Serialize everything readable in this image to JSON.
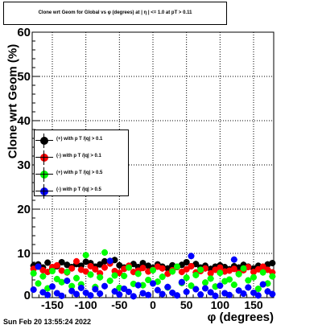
{
  "title": "Clone wrt Geom for Global vs φ (degrees) at | η | <= 1.0 at pT > 0.11",
  "footer": "Sun Feb 20 13:55:24 2022",
  "colors": {
    "black": "#000000",
    "red": "#ff0000",
    "green": "#00ff00",
    "blue": "#0000ff"
  },
  "chart_data": {
    "type": "scatter",
    "title": "Clone wrt Geom for Global vs φ (degrees) at | η | <= 1.0 at pT > 0.11",
    "xlabel": "φ (degrees)",
    "ylabel": "Clone wrt Geom (%)",
    "xlim": [
      -180,
      180
    ],
    "ylim": [
      0,
      60
    ],
    "xticks": [
      -150,
      -100,
      -50,
      0,
      50,
      100,
      150
    ],
    "yticks": [
      10,
      20,
      30,
      40,
      50,
      60
    ],
    "grid": true,
    "legend_position": "left-middle",
    "x": [
      -178,
      -171,
      -164,
      -157,
      -150,
      -143,
      -136,
      -128,
      -121,
      -114,
      -107,
      -100,
      -93,
      -86,
      -79,
      -72,
      -64,
      -57,
      -50,
      -43,
      -36,
      -29,
      -22,
      -15,
      -7,
      0,
      7,
      14,
      22,
      29,
      36,
      43,
      50,
      57,
      64,
      71,
      78,
      86,
      93,
      100,
      107,
      114,
      121,
      128,
      135,
      142,
      150,
      157,
      164,
      171,
      178
    ],
    "series": [
      {
        "name": "(+) with p T /|q| > 0.1",
        "color": "#000000",
        "values": [
          7.2,
          7.5,
          6.8,
          7.9,
          6.5,
          7.1,
          8.0,
          7.4,
          6.9,
          7.6,
          7.2,
          8.1,
          7.8,
          7.0,
          7.5,
          8.2,
          7.9,
          8.5,
          7.3,
          6.8,
          7.1,
          7.6,
          6.9,
          7.8,
          7.2,
          6.7,
          7.5,
          7.0,
          6.6,
          7.3,
          6.9,
          7.4,
          8.0,
          7.1,
          7.6,
          6.8,
          7.2,
          6.5,
          7.0,
          7.3,
          6.9,
          6.4,
          7.1,
          6.8,
          7.4,
          7.0,
          6.6,
          7.2,
          6.9,
          7.5,
          7.8
        ]
      },
      {
        "name": "(-) with p T /|q| > 0.1",
        "color": "#ff0000",
        "values": [
          6.5,
          7.0,
          6.2,
          5.8,
          6.9,
          7.3,
          6.1,
          5.7,
          6.6,
          8.2,
          6.3,
          5.9,
          7.1,
          6.4,
          5.5,
          6.8,
          7.7,
          6.0,
          5.6,
          6.5,
          7.2,
          5.8,
          6.1,
          6.7,
          5.9,
          6.3,
          7.0,
          6.6,
          5.4,
          6.2,
          6.9,
          5.8,
          6.4,
          7.1,
          5.7,
          6.0,
          6.6,
          5.5,
          6.3,
          6.8,
          5.9,
          6.1,
          6.5,
          5.6,
          6.2,
          6.9,
          5.8,
          6.4,
          7.0,
          6.3,
          5.7
        ]
      },
      {
        "name": "(+) with p T /|q| > 0.5",
        "color": "#00ff00",
        "values": [
          5.5,
          3.2,
          4.8,
          2.1,
          6.0,
          4.2,
          3.5,
          5.8,
          2.6,
          4.4,
          3.0,
          9.6,
          5.2,
          2.4,
          4.6,
          10.2,
          3.8,
          5.0,
          2.2,
          4.9,
          6.8,
          3.1,
          5.4,
          2.8,
          4.0,
          6.2,
          3.6,
          4.7,
          2.3,
          5.9,
          7.0,
          3.3,
          4.5,
          2.7,
          5.1,
          6.3,
          3.4,
          4.3,
          2.5,
          5.6,
          3.7,
          4.1,
          2.9,
          5.3,
          6.6,
          3.9,
          4.6,
          2.0,
          5.7,
          3.2,
          4.8
        ]
      },
      {
        "name": "(-) with p T /|q| > 0.5",
        "color": "#0000ff",
        "values": [
          1.8,
          7.0,
          1.2,
          0.6,
          2.5,
          1.0,
          0.4,
          3.8,
          1.5,
          0.8,
          2.2,
          1.1,
          0.5,
          1.9,
          0.9,
          2.6,
          8.3,
          1.4,
          0.7,
          2.0,
          1.3,
          0.3,
          2.8,
          1.0,
          0.6,
          3.2,
          1.7,
          0.8,
          2.4,
          1.1,
          0.5,
          3.5,
          1.3,
          9.4,
          1.9,
          0.7,
          2.1,
          1.2,
          0.4,
          2.7,
          1.0,
          0.6,
          8.6,
          1.6,
          0.9,
          2.3,
          1.1,
          0.5,
          3.0,
          1.4,
          0.8
        ]
      }
    ]
  }
}
